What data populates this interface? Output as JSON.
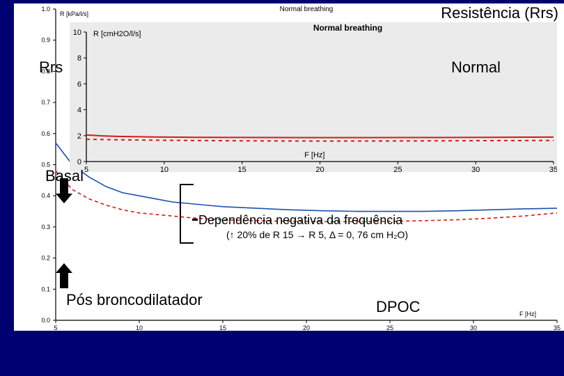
{
  "title": "Resistência (Rrs)",
  "labels": {
    "rrs": "Rrs",
    "normal": "Normal",
    "basal": "Basal",
    "pos_bronco": "Pós broncodilatador",
    "dpoc": "DPOC",
    "dep_neg": "Dependência negativa da frequência",
    "dep_neg_sub": "(↑ 20% de R 15 → R 5, Δ = 0, 76 cm H₂O)"
  },
  "back_chart": {
    "type": "line",
    "title_over": "Normal breathing",
    "title_fontsize": 10,
    "y_axis_label": "R [kPa/l/s]",
    "x_axis_label": "F [Hz]",
    "axis_label_fontsize": 9,
    "tick_fontsize": 9,
    "xlim": [
      5,
      35
    ],
    "ylim": [
      0.0,
      1.0
    ],
    "yticks": [
      0.0,
      0.1,
      0.2,
      0.3,
      0.4,
      0.5,
      0.6,
      0.7,
      0.8,
      0.9,
      1.0
    ],
    "xticks": [
      5,
      10,
      15,
      20,
      25,
      30,
      35
    ],
    "background_color": "#ffffff",
    "axis_color": "#000000",
    "series": [
      {
        "name": "basal",
        "color": "#1e4fb0",
        "width": 1.6,
        "dash": "none",
        "points": [
          [
            5,
            0.57
          ],
          [
            6,
            0.5
          ],
          [
            7,
            0.46
          ],
          [
            8,
            0.43
          ],
          [
            9,
            0.41
          ],
          [
            10,
            0.4
          ],
          [
            11,
            0.39
          ],
          [
            12,
            0.38
          ],
          [
            13,
            0.375
          ],
          [
            14,
            0.37
          ],
          [
            15,
            0.365
          ],
          [
            17,
            0.36
          ],
          [
            19,
            0.355
          ],
          [
            21,
            0.352
          ],
          [
            23,
            0.35
          ],
          [
            25,
            0.35
          ],
          [
            27,
            0.35
          ],
          [
            29,
            0.352
          ],
          [
            31,
            0.355
          ],
          [
            33,
            0.358
          ],
          [
            35,
            0.36
          ]
        ]
      },
      {
        "name": "pos-broncodilatador",
        "color": "#d21a1a",
        "width": 1.6,
        "dash": "5,4",
        "points": [
          [
            5,
            0.48
          ],
          [
            6,
            0.42
          ],
          [
            7,
            0.39
          ],
          [
            8,
            0.37
          ],
          [
            9,
            0.355
          ],
          [
            10,
            0.345
          ],
          [
            11,
            0.34
          ],
          [
            12,
            0.335
          ],
          [
            13,
            0.33
          ],
          [
            14,
            0.326
          ],
          [
            15,
            0.323
          ],
          [
            17,
            0.32
          ],
          [
            19,
            0.318
          ],
          [
            21,
            0.317
          ],
          [
            23,
            0.317
          ],
          [
            25,
            0.318
          ],
          [
            27,
            0.32
          ],
          [
            29,
            0.323
          ],
          [
            31,
            0.328
          ],
          [
            33,
            0.335
          ],
          [
            35,
            0.345
          ]
        ]
      }
    ]
  },
  "front_chart": {
    "type": "line",
    "title": "Normal breathing",
    "title_fontsize": 12,
    "title_weight": "bold",
    "y_axis_label": "R [cmH2O/l/s]",
    "x_axis_label": "F [Hz]",
    "axis_label_fontsize": 11,
    "tick_fontsize": 11,
    "xlim": [
      5,
      35
    ],
    "ylim": [
      0,
      10
    ],
    "yticks": [
      0,
      2,
      4,
      6,
      8,
      10
    ],
    "xticks": [
      5,
      10,
      15,
      20,
      25,
      30,
      35
    ],
    "background_color": "#ebebeb",
    "axis_color": "#000000",
    "series": [
      {
        "name": "normal-main",
        "color": "#d21a1a",
        "width": 2,
        "dash": "none",
        "points": [
          [
            5,
            2.05
          ],
          [
            6,
            1.98
          ],
          [
            7,
            1.94
          ],
          [
            8,
            1.92
          ],
          [
            9,
            1.9
          ],
          [
            10,
            1.89
          ],
          [
            11,
            1.88
          ],
          [
            12,
            1.87
          ],
          [
            13,
            1.865
          ],
          [
            14,
            1.86
          ],
          [
            15,
            1.86
          ],
          [
            17,
            1.855
          ],
          [
            19,
            1.85
          ],
          [
            21,
            1.85
          ],
          [
            23,
            1.85
          ],
          [
            25,
            1.852
          ],
          [
            27,
            1.855
          ],
          [
            29,
            1.86
          ],
          [
            31,
            1.87
          ],
          [
            33,
            1.88
          ],
          [
            35,
            1.89
          ]
        ]
      },
      {
        "name": "normal-alt",
        "color": "#d21a1a",
        "width": 2,
        "dash": "5,5",
        "points": [
          [
            5,
            1.72
          ],
          [
            7,
            1.68
          ],
          [
            10,
            1.64
          ],
          [
            15,
            1.6
          ],
          [
            20,
            1.58
          ],
          [
            25,
            1.59
          ],
          [
            30,
            1.61
          ],
          [
            35,
            1.63
          ]
        ]
      }
    ]
  }
}
